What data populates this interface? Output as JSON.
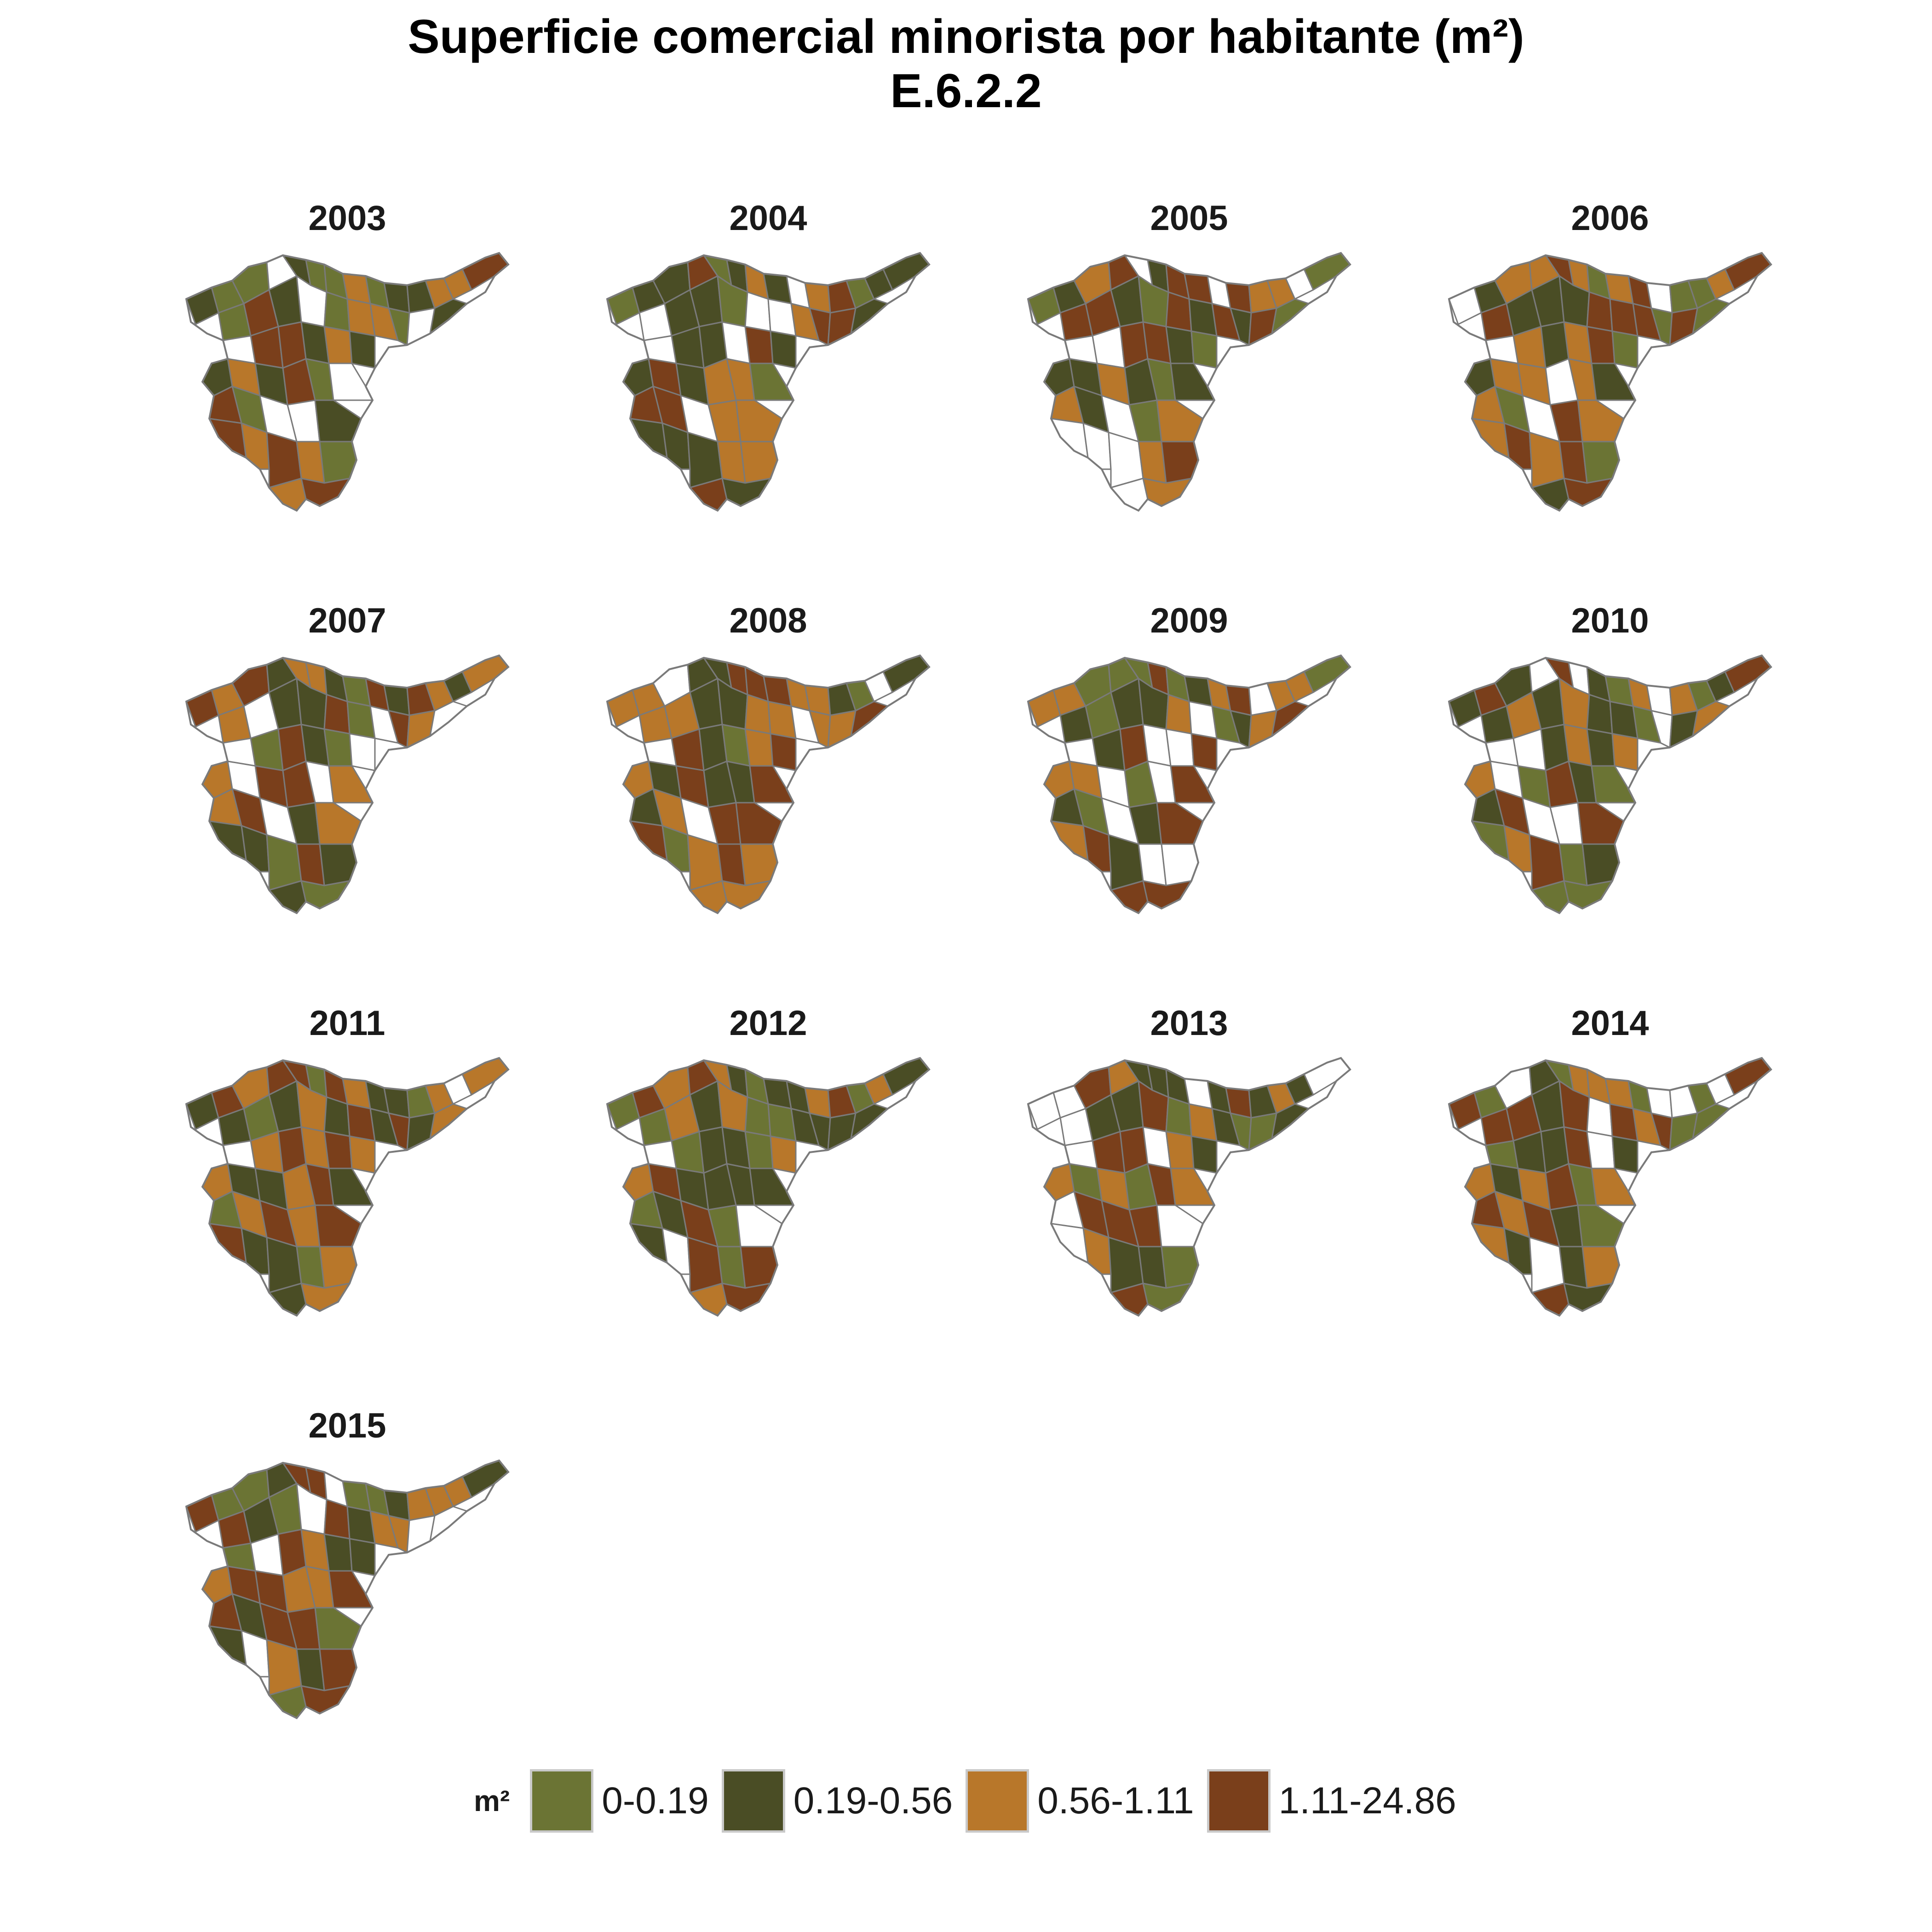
{
  "title": {
    "line1": "Superficie comercial minorista por habitante (m²)",
    "line2": "E.6.2.2"
  },
  "panels": [
    {
      "year": "2003"
    },
    {
      "year": "2004"
    },
    {
      "year": "2005"
    },
    {
      "year": "2006"
    },
    {
      "year": "2007"
    },
    {
      "year": "2008"
    },
    {
      "year": "2009"
    },
    {
      "year": "2010"
    },
    {
      "year": "2011"
    },
    {
      "year": "2012"
    },
    {
      "year": "2013"
    },
    {
      "year": "2014"
    },
    {
      "year": "2015"
    }
  ],
  "legend": {
    "title": "m²",
    "items": [
      {
        "label": "0-0.19",
        "color": "#6b7434"
      },
      {
        "label": "0.19-0.56",
        "color": "#4a4d25"
      },
      {
        "label": "0.56-1.11",
        "color": "#b8772a"
      },
      {
        "label": "1.11-24.86",
        "color": "#7a3f1b"
      }
    ]
  },
  "colors": {
    "no_data": "#ffffff",
    "border": "#7a7a7a"
  }
}
